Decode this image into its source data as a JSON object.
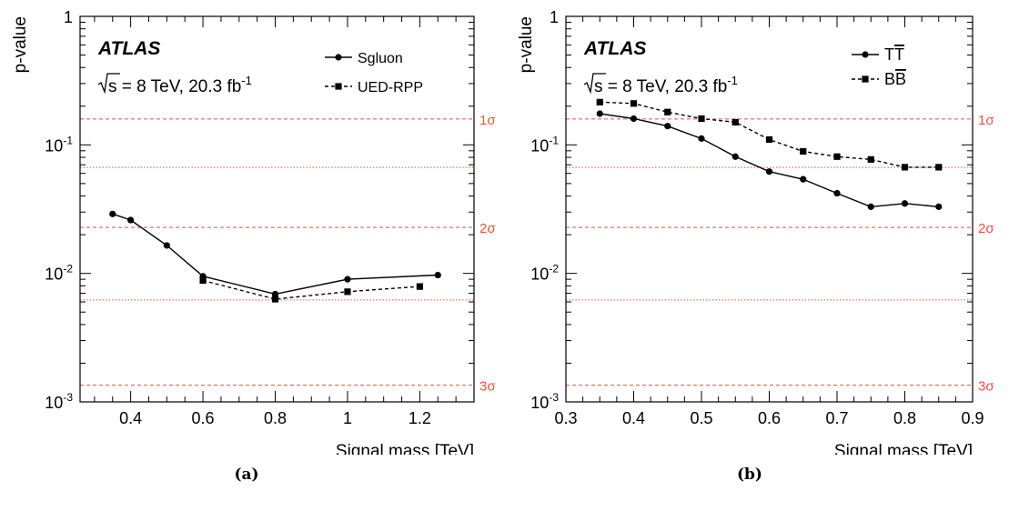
{
  "figure_a": {
    "caption": "(a)",
    "experiment": "ATLAS",
    "energy_text": "s = 8 TeV, 20.3 fb",
    "lumi_exponent": "-1",
    "chart_data": {
      "type": "line",
      "xlabel": "Signal mass [TeV]",
      "ylabel": "p-value",
      "xlim": [
        0.26,
        1.35
      ],
      "ylim": [
        0.001,
        1
      ],
      "yscale": "log",
      "x_ticks": [
        0.4,
        0.6,
        0.8,
        1,
        1.2
      ],
      "x_tick_labels": [
        "0.4",
        "0.6",
        "0.8",
        "1",
        "1.2"
      ],
      "y_ticks": [
        {
          "value": 1,
          "base": "1",
          "exp": ""
        },
        {
          "value": 0.1,
          "base": "10",
          "exp": "-1"
        },
        {
          "value": 0.01,
          "base": "10",
          "exp": "-2"
        },
        {
          "value": 0.001,
          "base": "10",
          "exp": "-3"
        }
      ],
      "legend_position": "top-right",
      "sigma_lines": [
        {
          "p": 0.159,
          "label": "1σ",
          "labelled": true
        },
        {
          "p": 0.0668,
          "label": "",
          "labelled": false
        },
        {
          "p": 0.0228,
          "label": "2σ",
          "labelled": true
        },
        {
          "p": 0.00621,
          "label": "",
          "labelled": false
        },
        {
          "p": 0.00135,
          "label": "3σ",
          "labelled": true
        }
      ],
      "series": [
        {
          "name": "Sgluon",
          "marker": "circle",
          "line": "solid",
          "x": [
            0.35,
            0.4,
            0.5,
            0.6,
            0.8,
            1.0,
            1.25
          ],
          "y": [
            0.029,
            0.026,
            0.0165,
            0.0095,
            0.0069,
            0.009,
            0.0097
          ]
        },
        {
          "name": "UED-RPP",
          "marker": "square",
          "line": "dashed",
          "x": [
            0.6,
            0.8,
            1.0,
            1.2
          ],
          "y": [
            0.0088,
            0.0063,
            0.0072,
            0.0079
          ]
        }
      ]
    }
  },
  "figure_b": {
    "caption": "(b)",
    "experiment": "ATLAS",
    "energy_text": "s = 8 TeV, 20.3 fb",
    "lumi_exponent": "-1",
    "chart_data": {
      "type": "line",
      "xlabel": "Signal mass [TeV]",
      "ylabel": "p-value",
      "xlim": [
        0.3,
        0.9
      ],
      "ylim": [
        0.001,
        1
      ],
      "yscale": "log",
      "x_ticks": [
        0.3,
        0.4,
        0.5,
        0.6,
        0.7,
        0.8,
        0.9
      ],
      "x_tick_labels": [
        "0.3",
        "0.4",
        "0.5",
        "0.6",
        "0.7",
        "0.8",
        "0.9"
      ],
      "y_ticks": [
        {
          "value": 1,
          "base": "1",
          "exp": ""
        },
        {
          "value": 0.1,
          "base": "10",
          "exp": "-1"
        },
        {
          "value": 0.01,
          "base": "10",
          "exp": "-2"
        },
        {
          "value": 0.001,
          "base": "10",
          "exp": "-3"
        }
      ],
      "legend_position": "top-right",
      "sigma_lines": [
        {
          "p": 0.159,
          "label": "1σ",
          "labelled": true
        },
        {
          "p": 0.0668,
          "label": "",
          "labelled": false
        },
        {
          "p": 0.0228,
          "label": "2σ",
          "labelled": true
        },
        {
          "p": 0.00621,
          "label": "",
          "labelled": false
        },
        {
          "p": 0.00135,
          "label": "3σ",
          "labelled": true
        }
      ],
      "series": [
        {
          "name": "TT",
          "name_overline": "T",
          "marker": "circle",
          "line": "solid",
          "x": [
            0.35,
            0.4,
            0.45,
            0.5,
            0.55,
            0.6,
            0.65,
            0.7,
            0.75,
            0.8,
            0.85
          ],
          "y": [
            0.175,
            0.16,
            0.14,
            0.112,
            0.081,
            0.062,
            0.054,
            0.042,
            0.033,
            0.035,
            0.033
          ]
        },
        {
          "name": "BB",
          "name_overline": "B",
          "marker": "square",
          "line": "dashed",
          "x": [
            0.35,
            0.4,
            0.45,
            0.5,
            0.55,
            0.6,
            0.65,
            0.7,
            0.75,
            0.8,
            0.85
          ],
          "y": [
            0.215,
            0.21,
            0.18,
            0.16,
            0.15,
            0.11,
            0.089,
            0.081,
            0.077,
            0.067,
            0.067
          ]
        }
      ]
    }
  },
  "colors": {
    "sigma_line": "#e8513d",
    "axis": "#000000",
    "series": "#000000"
  }
}
